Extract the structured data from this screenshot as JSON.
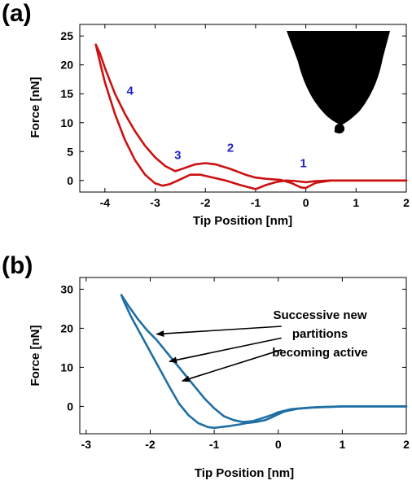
{
  "chart_data": [
    {
      "type": "line",
      "panel_label": "(a)",
      "xlabel": "Tip Position [nm]",
      "ylabel": "Force [nN]",
      "xlim": [
        -4.5,
        2
      ],
      "ylim": [
        -2,
        27
      ],
      "xticks": [
        -4,
        -3,
        -2,
        -1,
        0,
        1,
        2
      ],
      "yticks": [
        0,
        5,
        10,
        15,
        20,
        25
      ],
      "grid": false,
      "color": "#cc1111",
      "series": [
        {
          "x": [
            2.0,
            1.0,
            0.5,
            0.2,
            0.0,
            -0.2,
            -0.4,
            -0.6,
            -0.8,
            -1.0,
            -1.3,
            -1.6,
            -1.9,
            -2.1,
            -2.3,
            -2.5,
            -2.7,
            -2.85,
            -3.0,
            -3.2,
            -3.4,
            -3.6,
            -3.8,
            -4.0,
            -4.1,
            -4.18
          ],
          "y": [
            0.0,
            0.0,
            0.0,
            -0.1,
            -0.3,
            -0.1,
            0.0,
            -0.3,
            -0.8,
            -1.5,
            -0.8,
            0.0,
            0.6,
            1.0,
            1.0,
            0.2,
            -0.6,
            -0.9,
            -0.5,
            1.0,
            3.5,
            7.0,
            11.5,
            17.0,
            20.5,
            23.5
          ]
        },
        {
          "x": [
            -4.18,
            -4.1,
            -4.0,
            -3.8,
            -3.6,
            -3.4,
            -3.2,
            -3.0,
            -2.8,
            -2.6,
            -2.4,
            -2.2,
            -2.0,
            -1.8,
            -1.5,
            -1.2,
            -1.0,
            -0.8,
            -0.5,
            -0.3,
            -0.1,
            0.0,
            0.2,
            0.5,
            1.0,
            2.0
          ],
          "y": [
            23.5,
            22.0,
            19.5,
            15.0,
            11.5,
            8.5,
            6.0,
            4.0,
            2.5,
            1.6,
            2.2,
            2.8,
            3.0,
            2.8,
            2.0,
            1.0,
            0.5,
            0.3,
            0.1,
            -0.4,
            -1.2,
            -1.3,
            -0.4,
            0.0,
            0.0,
            0.0
          ]
        }
      ],
      "annotations": [
        {
          "text": "1",
          "x": -0.05,
          "y": 2.3
        },
        {
          "text": "2",
          "x": -1.5,
          "y": 5.0
        },
        {
          "text": "3",
          "x": -2.55,
          "y": 3.7
        },
        {
          "text": "4",
          "x": -3.5,
          "y": 14.8
        }
      ]
    },
    {
      "type": "line",
      "panel_label": "(b)",
      "xlabel": "Tip Position [nm]",
      "ylabel": "Force [nN]",
      "xlim": [
        -3.1,
        2
      ],
      "ylim": [
        -7,
        33
      ],
      "xticks": [
        -3,
        -2,
        -1,
        0,
        1,
        2
      ],
      "yticks": [
        0,
        10,
        20,
        30
      ],
      "grid": false,
      "color": "#1f6fa3",
      "series": [
        {
          "x": [
            2.0,
            1.0,
            0.6,
            0.3,
            0.1,
            0.0,
            -0.1,
            -0.2,
            -0.35,
            -0.5,
            -0.6,
            -0.75,
            -0.9,
            -1.0,
            -1.1,
            -1.25,
            -1.4,
            -1.55,
            -1.7,
            -1.85,
            -2.0,
            -2.15,
            -2.3,
            -2.4,
            -2.45
          ],
          "y": [
            0.0,
            0.0,
            -0.2,
            -0.6,
            -1.3,
            -2.0,
            -2.8,
            -3.5,
            -4.0,
            -4.3,
            -4.6,
            -5.0,
            -5.3,
            -5.5,
            -5.3,
            -4.3,
            -2.3,
            0.7,
            5.0,
            9.5,
            14.0,
            18.5,
            23.0,
            26.5,
            28.5
          ]
        },
        {
          "x": [
            -2.45,
            -2.35,
            -2.2,
            -2.05,
            -1.9,
            -1.75,
            -1.6,
            -1.45,
            -1.3,
            -1.15,
            -1.0,
            -0.85,
            -0.7,
            -0.55,
            -0.4,
            -0.25,
            -0.1,
            0.0,
            0.2,
            0.5,
            1.0,
            2.0
          ],
          "y": [
            28.5,
            26.0,
            22.5,
            19.5,
            17.0,
            14.0,
            11.0,
            8.0,
            5.0,
            2.0,
            -0.5,
            -2.5,
            -3.5,
            -4.0,
            -3.8,
            -3.0,
            -2.2,
            -1.5,
            -0.7,
            -0.3,
            0.0,
            0.0
          ]
        }
      ],
      "annotations": [
        {
          "lines": [
            "Successive new",
            "partitions",
            "becoming active"
          ]
        }
      ],
      "arrows": [
        {
          "from_x": 0.05,
          "from_y": 20.5,
          "to_x": -1.9,
          "to_y": 18.5
        },
        {
          "from_x": 0.05,
          "from_y": 17.5,
          "to_x": -1.7,
          "to_y": 11.5
        },
        {
          "from_x": 0.05,
          "from_y": 14.5,
          "to_x": -1.5,
          "to_y": 6.5
        }
      ]
    }
  ]
}
